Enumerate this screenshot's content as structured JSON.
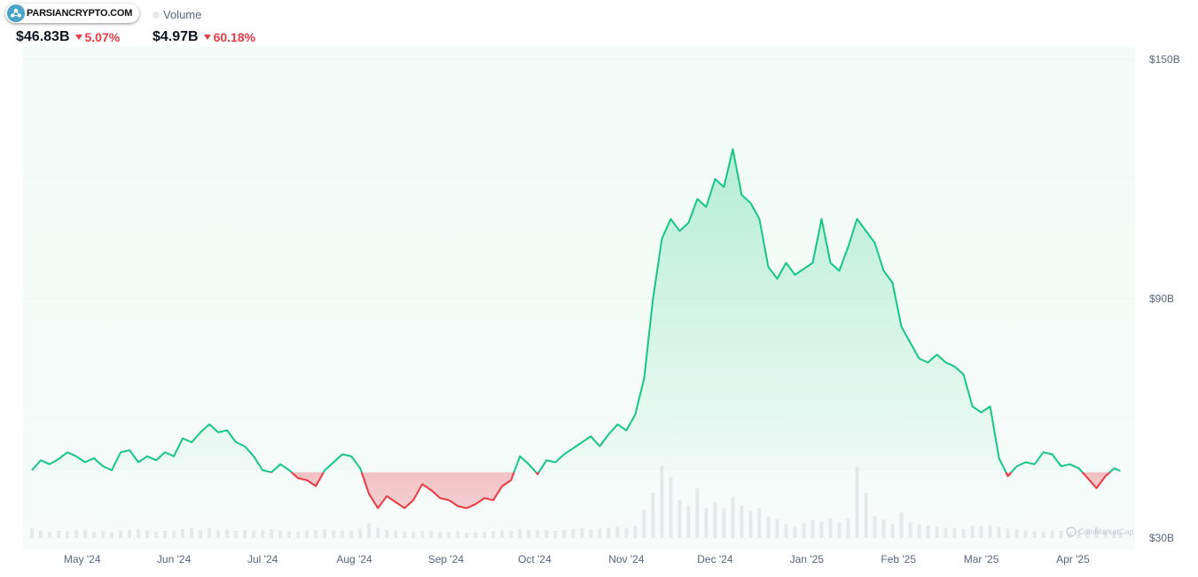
{
  "header": {
    "logo_text": "PARSIANCRYPTO.COM",
    "legend_volume": "Volume",
    "stats": [
      {
        "value": "$46.83B",
        "change": "5.07%"
      },
      {
        "value": "$4.97B",
        "change": "60.18%"
      }
    ]
  },
  "watermark": "CoinMarketCap",
  "colors": {
    "up": "#16c784",
    "down": "#ea3943",
    "volume": "#e6e8eb",
    "grid": "#e6e8eb",
    "axis_text": "#58667e"
  },
  "chart_data": {
    "type": "area",
    "title": "",
    "xlabel": "",
    "ylabel": "",
    "baseline": 46.83,
    "ylim": [
      30,
      150
    ],
    "y_ticks": [
      {
        "value": 150,
        "label": "$150B"
      },
      {
        "value": 90,
        "label": "$90B"
      },
      {
        "value": 30,
        "label": "$30B"
      }
    ],
    "x_ticks": [
      {
        "date": "2024-05-01",
        "label": "May '24"
      },
      {
        "date": "2024-06-01",
        "label": "Jun '24"
      },
      {
        "date": "2024-07-01",
        "label": "Jul '24"
      },
      {
        "date": "2024-08-01",
        "label": "Aug '24"
      },
      {
        "date": "2024-09-01",
        "label": "Sep '24"
      },
      {
        "date": "2024-10-01",
        "label": "Oct '24"
      },
      {
        "date": "2024-11-01",
        "label": "Nov '24"
      },
      {
        "date": "2024-12-01",
        "label": "Dec '24"
      },
      {
        "date": "2025-01-01",
        "label": "Jan '25"
      },
      {
        "date": "2025-02-01",
        "label": "Feb '25"
      },
      {
        "date": "2025-03-01",
        "label": "Mar '25"
      },
      {
        "date": "2025-04-01",
        "label": "Apr '25"
      }
    ],
    "series": [
      {
        "kind": "line",
        "points": [
          [
            "2024-04-14",
            47.0
          ],
          [
            "2024-04-17",
            49.5
          ],
          [
            "2024-04-20",
            48.5
          ],
          [
            "2024-04-23",
            49.8
          ],
          [
            "2024-04-26",
            51.5
          ],
          [
            "2024-04-29",
            50.5
          ],
          [
            "2024-05-02",
            49.0
          ],
          [
            "2024-05-05",
            50.0
          ],
          [
            "2024-05-08",
            48.0
          ],
          [
            "2024-05-11",
            47.0
          ],
          [
            "2024-05-14",
            51.5
          ],
          [
            "2024-05-17",
            52.0
          ],
          [
            "2024-05-20",
            49.0
          ],
          [
            "2024-05-23",
            50.5
          ],
          [
            "2024-05-26",
            49.5
          ],
          [
            "2024-05-29",
            51.5
          ],
          [
            "2024-06-01",
            50.5
          ],
          [
            "2024-06-04",
            55.0
          ],
          [
            "2024-06-07",
            54.0
          ],
          [
            "2024-06-10",
            56.5
          ],
          [
            "2024-06-13",
            58.5
          ],
          [
            "2024-06-16",
            56.5
          ],
          [
            "2024-06-19",
            57.0
          ],
          [
            "2024-06-22",
            54.0
          ],
          [
            "2024-06-25",
            53.0
          ],
          [
            "2024-06-28",
            50.5
          ],
          [
            "2024-07-01",
            47.0
          ],
          [
            "2024-07-04",
            46.5
          ],
          [
            "2024-07-07",
            48.5
          ],
          [
            "2024-07-10",
            47.0
          ],
          [
            "2024-07-13",
            45.0
          ],
          [
            "2024-07-16",
            44.5
          ],
          [
            "2024-07-19",
            43.0
          ],
          [
            "2024-07-22",
            47.0
          ],
          [
            "2024-07-25",
            49.0
          ],
          [
            "2024-07-28",
            51.0
          ],
          [
            "2024-07-31",
            50.5
          ],
          [
            "2024-08-03",
            47.5
          ],
          [
            "2024-08-06",
            41.0
          ],
          [
            "2024-08-09",
            37.5
          ],
          [
            "2024-08-12",
            40.5
          ],
          [
            "2024-08-15",
            39.0
          ],
          [
            "2024-08-18",
            37.5
          ],
          [
            "2024-08-21",
            39.5
          ],
          [
            "2024-08-24",
            43.5
          ],
          [
            "2024-08-27",
            42.0
          ],
          [
            "2024-08-30",
            40.0
          ],
          [
            "2024-09-02",
            39.5
          ],
          [
            "2024-09-05",
            38.0
          ],
          [
            "2024-09-08",
            37.5
          ],
          [
            "2024-09-11",
            38.5
          ],
          [
            "2024-09-14",
            40.0
          ],
          [
            "2024-09-17",
            39.5
          ],
          [
            "2024-09-20",
            43.0
          ],
          [
            "2024-09-23",
            44.5
          ],
          [
            "2024-09-26",
            50.5
          ],
          [
            "2024-09-29",
            48.5
          ],
          [
            "2024-10-02",
            46.0
          ],
          [
            "2024-10-05",
            49.5
          ],
          [
            "2024-10-08",
            49.0
          ],
          [
            "2024-10-11",
            51.0
          ],
          [
            "2024-10-14",
            52.5
          ],
          [
            "2024-10-17",
            54.0
          ],
          [
            "2024-10-20",
            55.5
          ],
          [
            "2024-10-23",
            53.0
          ],
          [
            "2024-10-26",
            56.0
          ],
          [
            "2024-10-29",
            58.5
          ],
          [
            "2024-11-01",
            57.0
          ],
          [
            "2024-11-04",
            61.0
          ],
          [
            "2024-11-07",
            70.0
          ],
          [
            "2024-11-10",
            90.0
          ],
          [
            "2024-11-13",
            105.0
          ],
          [
            "2024-11-16",
            110.0
          ],
          [
            "2024-11-19",
            107.0
          ],
          [
            "2024-11-22",
            109.0
          ],
          [
            "2024-11-25",
            115.0
          ],
          [
            "2024-11-28",
            113.0
          ],
          [
            "2024-12-01",
            120.0
          ],
          [
            "2024-12-04",
            118.0
          ],
          [
            "2024-12-07",
            127.5
          ],
          [
            "2024-12-10",
            116.0
          ],
          [
            "2024-12-13",
            114.0
          ],
          [
            "2024-12-16",
            110.0
          ],
          [
            "2024-12-19",
            98.0
          ],
          [
            "2024-12-22",
            95.0
          ],
          [
            "2024-12-25",
            99.0
          ],
          [
            "2024-12-28",
            96.0
          ],
          [
            "2024-12-31",
            97.5
          ],
          [
            "2025-01-03",
            99.0
          ],
          [
            "2025-01-06",
            110.0
          ],
          [
            "2025-01-09",
            99.0
          ],
          [
            "2025-01-12",
            97.0
          ],
          [
            "2025-01-15",
            103.0
          ],
          [
            "2025-01-18",
            110.0
          ],
          [
            "2025-01-21",
            107.0
          ],
          [
            "2025-01-24",
            104.0
          ],
          [
            "2025-01-27",
            97.0
          ],
          [
            "2025-01-30",
            94.0
          ],
          [
            "2025-02-02",
            83.0
          ],
          [
            "2025-02-05",
            79.0
          ],
          [
            "2025-02-08",
            75.0
          ],
          [
            "2025-02-11",
            74.0
          ],
          [
            "2025-02-14",
            76.0
          ],
          [
            "2025-02-17",
            74.0
          ],
          [
            "2025-02-20",
            73.0
          ],
          [
            "2025-02-23",
            71.0
          ],
          [
            "2025-02-26",
            63.0
          ],
          [
            "2025-03-01",
            61.5
          ],
          [
            "2025-03-04",
            63.0
          ],
          [
            "2025-03-07",
            50.0
          ],
          [
            "2025-03-10",
            45.5
          ],
          [
            "2025-03-13",
            48.0
          ],
          [
            "2025-03-16",
            49.0
          ],
          [
            "2025-03-19",
            48.5
          ],
          [
            "2025-03-22",
            51.5
          ],
          [
            "2025-03-25",
            51.0
          ],
          [
            "2025-03-28",
            48.0
          ],
          [
            "2025-03-31",
            48.5
          ],
          [
            "2025-04-03",
            47.5
          ],
          [
            "2025-04-06",
            45.0
          ],
          [
            "2025-04-09",
            42.5
          ],
          [
            "2025-04-12",
            45.5
          ],
          [
            "2025-04-15",
            47.5
          ],
          [
            "2025-04-17",
            46.8
          ]
        ]
      },
      {
        "kind": "volume_bars",
        "points": [
          [
            "2024-04-14",
            3.4
          ],
          [
            "2024-04-17",
            2.6
          ],
          [
            "2024-04-20",
            2.2
          ],
          [
            "2024-04-23",
            2.5
          ],
          [
            "2024-04-26",
            2.3
          ],
          [
            "2024-04-29",
            2.8
          ],
          [
            "2024-05-02",
            3.0
          ],
          [
            "2024-05-05",
            2.1
          ],
          [
            "2024-05-08",
            2.4
          ],
          [
            "2024-05-11",
            2.0
          ],
          [
            "2024-05-14",
            2.6
          ],
          [
            "2024-05-17",
            2.9
          ],
          [
            "2024-05-20",
            3.1
          ],
          [
            "2024-05-23",
            2.8
          ],
          [
            "2024-05-26",
            2.2
          ],
          [
            "2024-05-29",
            2.5
          ],
          [
            "2024-06-01",
            2.3
          ],
          [
            "2024-06-04",
            3.2
          ],
          [
            "2024-06-07",
            3.6
          ],
          [
            "2024-06-10",
            2.9
          ],
          [
            "2024-06-13",
            3.4
          ],
          [
            "2024-06-16",
            2.7
          ],
          [
            "2024-06-19",
            3.0
          ],
          [
            "2024-06-22",
            2.5
          ],
          [
            "2024-06-25",
            2.8
          ],
          [
            "2024-06-28",
            2.6
          ],
          [
            "2024-07-01",
            2.9
          ],
          [
            "2024-07-04",
            3.2
          ],
          [
            "2024-07-07",
            2.7
          ],
          [
            "2024-07-10",
            2.4
          ],
          [
            "2024-07-13",
            2.2
          ],
          [
            "2024-07-16",
            2.6
          ],
          [
            "2024-07-19",
            2.8
          ],
          [
            "2024-07-22",
            3.1
          ],
          [
            "2024-07-25",
            2.7
          ],
          [
            "2024-07-28",
            2.5
          ],
          [
            "2024-07-31",
            2.6
          ],
          [
            "2024-08-03",
            3.3
          ],
          [
            "2024-08-06",
            5.2
          ],
          [
            "2024-08-09",
            3.6
          ],
          [
            "2024-08-12",
            2.8
          ],
          [
            "2024-08-15",
            2.5
          ],
          [
            "2024-08-18",
            2.3
          ],
          [
            "2024-08-21",
            2.2
          ],
          [
            "2024-08-24",
            2.4
          ],
          [
            "2024-08-27",
            2.6
          ],
          [
            "2024-08-30",
            2.1
          ],
          [
            "2024-09-02",
            2.0
          ],
          [
            "2024-09-05",
            2.3
          ],
          [
            "2024-09-08",
            1.9
          ],
          [
            "2024-09-11",
            2.0
          ],
          [
            "2024-09-14",
            2.2
          ],
          [
            "2024-09-17",
            2.4
          ],
          [
            "2024-09-20",
            2.7
          ],
          [
            "2024-09-23",
            2.5
          ],
          [
            "2024-09-26",
            3.3
          ],
          [
            "2024-09-29",
            2.9
          ],
          [
            "2024-10-02",
            2.7
          ],
          [
            "2024-10-05",
            2.8
          ],
          [
            "2024-10-08",
            2.5
          ],
          [
            "2024-10-11",
            2.9
          ],
          [
            "2024-10-14",
            3.2
          ],
          [
            "2024-10-17",
            3.4
          ],
          [
            "2024-10-20",
            3.0
          ],
          [
            "2024-10-23",
            3.3
          ],
          [
            "2024-10-26",
            3.6
          ],
          [
            "2024-10-29",
            4.0
          ],
          [
            "2024-11-01",
            3.5
          ],
          [
            "2024-11-04",
            4.2
          ],
          [
            "2024-11-07",
            10.0
          ],
          [
            "2024-11-10",
            16.0
          ],
          [
            "2024-11-13",
            25.5
          ],
          [
            "2024-11-16",
            21.5
          ],
          [
            "2024-11-19",
            13.5
          ],
          [
            "2024-11-22",
            11.5
          ],
          [
            "2024-11-25",
            17.5
          ],
          [
            "2024-11-28",
            10.5
          ],
          [
            "2024-12-01",
            12.5
          ],
          [
            "2024-12-04",
            10.5
          ],
          [
            "2024-12-07",
            14.5
          ],
          [
            "2024-12-10",
            11.5
          ],
          [
            "2024-12-13",
            9.5
          ],
          [
            "2024-12-16",
            10.5
          ],
          [
            "2024-12-19",
            7.5
          ],
          [
            "2024-12-22",
            6.5
          ],
          [
            "2024-12-25",
            5.0
          ],
          [
            "2024-12-28",
            4.0
          ],
          [
            "2024-12-31",
            5.2
          ],
          [
            "2025-01-03",
            6.3
          ],
          [
            "2025-01-06",
            5.8
          ],
          [
            "2025-01-09",
            7.0
          ],
          [
            "2025-01-12",
            5.5
          ],
          [
            "2025-01-15",
            6.8
          ],
          [
            "2025-01-18",
            25.0
          ],
          [
            "2025-01-21",
            16.0
          ],
          [
            "2025-01-24",
            7.8
          ],
          [
            "2025-01-27",
            6.5
          ],
          [
            "2025-01-30",
            5.0
          ],
          [
            "2025-02-02",
            9.0
          ],
          [
            "2025-02-05",
            5.5
          ],
          [
            "2025-02-08",
            4.8
          ],
          [
            "2025-02-11",
            4.4
          ],
          [
            "2025-02-14",
            3.9
          ],
          [
            "2025-02-17",
            3.6
          ],
          [
            "2025-02-20",
            3.4
          ],
          [
            "2025-02-23",
            3.2
          ],
          [
            "2025-02-26",
            4.4
          ],
          [
            "2025-03-01",
            4.0
          ],
          [
            "2025-03-04",
            4.4
          ],
          [
            "2025-03-07",
            3.9
          ],
          [
            "2025-03-10",
            3.3
          ],
          [
            "2025-03-13",
            3.0
          ],
          [
            "2025-03-16",
            2.6
          ],
          [
            "2025-03-19",
            2.4
          ],
          [
            "2025-03-22",
            2.3
          ],
          [
            "2025-03-25",
            2.7
          ],
          [
            "2025-03-28",
            2.5
          ],
          [
            "2025-03-31",
            2.2
          ],
          [
            "2025-04-03",
            2.9
          ],
          [
            "2025-04-06",
            3.3
          ],
          [
            "2025-04-09",
            3.9
          ],
          [
            "2025-04-12",
            2.6
          ],
          [
            "2025-04-15",
            2.2
          ],
          [
            "2025-04-17",
            2.0
          ]
        ]
      }
    ]
  }
}
